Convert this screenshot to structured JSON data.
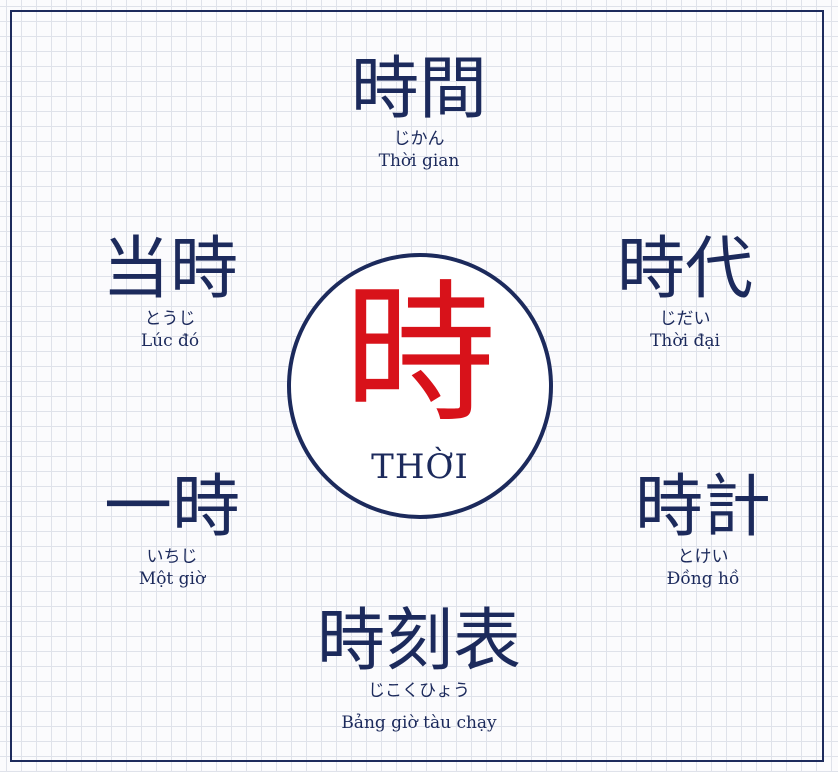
{
  "center": {
    "kanji": "時",
    "reading": "THỜI"
  },
  "words": [
    {
      "id": "jikan",
      "kanji": "時間",
      "kana": "じかん",
      "meaning": "Thời gian"
    },
    {
      "id": "touji",
      "kanji": "当時",
      "kana": "とうじ",
      "meaning": "Lúc đó"
    },
    {
      "id": "jidai",
      "kanji": "時代",
      "kana": "じだい",
      "meaning": "Thời đại"
    },
    {
      "id": "ichiji",
      "kanji": "一時",
      "kana": "いちじ",
      "meaning": "Một giờ"
    },
    {
      "id": "tokei",
      "kanji": "時計",
      "kana": "とけい",
      "meaning": "Đồng hồ"
    },
    {
      "id": "jikokuhyou",
      "kanji": "時刻表",
      "kana": "じこくひょう",
      "meaning": "Bảng giờ tàu chạy"
    }
  ],
  "colors": {
    "navy": "#1c2a5c",
    "red": "#d8121a",
    "grid": "#dfe2ea"
  }
}
